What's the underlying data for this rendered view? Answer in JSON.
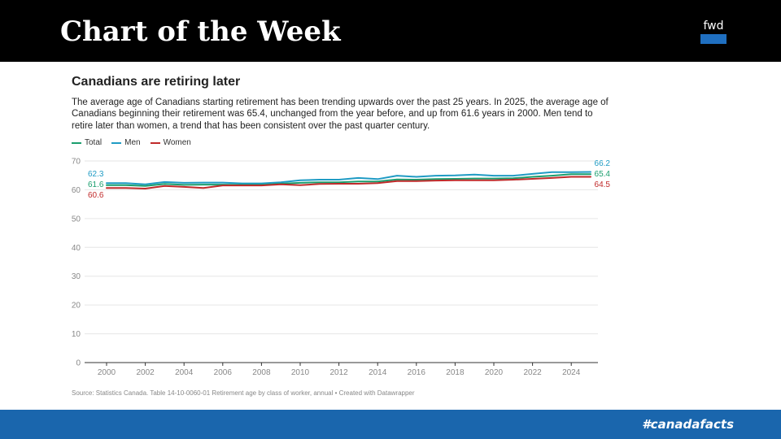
{
  "header": {
    "title": "Chart of the Week",
    "logo_text": "fwd",
    "logo_color": "#1f6fc0"
  },
  "footer": {
    "hashtag": "#canadafacts",
    "color": "#1a66ad"
  },
  "chart_data": {
    "type": "line",
    "title": "Canadians are retiring later",
    "subtitle": "The average age of Canadians starting retirement has been trending upwards over the past 25 years. In 2025, the average age of Canadians beginning their retirement was 65.4, unchanged from the year before, and up from 61.6 years in 2000. Men tend to retire later than women, a trend that has been consistent over the past quarter century.",
    "source": "Source: Statistics Canada. Table 14-10-0060-01 Retirement age by class of worker, annual • Created with Datawrapper",
    "x": [
      2000,
      2001,
      2002,
      2003,
      2004,
      2005,
      2006,
      2007,
      2008,
      2009,
      2010,
      2011,
      2012,
      2013,
      2014,
      2015,
      2016,
      2017,
      2018,
      2019,
      2020,
      2021,
      2022,
      2023,
      2024,
      2025
    ],
    "x_ticks": [
      "2000",
      "2002",
      "2004",
      "2006",
      "2008",
      "2010",
      "2012",
      "2014",
      "2016",
      "2018",
      "2020",
      "2022",
      "2024"
    ],
    "y_ticks": [
      "0",
      "10",
      "20",
      "30",
      "40",
      "50",
      "60",
      "70"
    ],
    "ylim": [
      0,
      70
    ],
    "grid": true,
    "legend_position": "top-left",
    "series": [
      {
        "name": "Total",
        "color": "#1a9e6e",
        "values": [
          61.6,
          61.6,
          61.3,
          62.0,
          61.7,
          61.8,
          61.8,
          61.7,
          61.7,
          62.1,
          62.4,
          62.6,
          62.6,
          62.9,
          62.9,
          63.6,
          63.5,
          63.7,
          63.8,
          63.9,
          63.9,
          64.0,
          64.5,
          64.9,
          65.4,
          65.4
        ],
        "start_label": "61.6",
        "end_label": "65.4"
      },
      {
        "name": "Men",
        "color": "#1f9bc4",
        "values": [
          62.3,
          62.3,
          61.9,
          62.7,
          62.4,
          62.5,
          62.5,
          62.2,
          62.2,
          62.6,
          63.3,
          63.5,
          63.5,
          64.1,
          63.7,
          64.9,
          64.5,
          64.9,
          65.0,
          65.3,
          64.9,
          64.9,
          65.5,
          66.1,
          66.1,
          66.2
        ],
        "start_label": "62.3",
        "end_label": "66.2"
      },
      {
        "name": "Women",
        "color": "#c02a2a",
        "values": [
          60.6,
          60.6,
          60.4,
          61.3,
          61.0,
          60.6,
          61.5,
          61.5,
          61.5,
          61.9,
          61.6,
          62.0,
          62.1,
          62.1,
          62.3,
          63.0,
          63.0,
          63.2,
          63.3,
          63.3,
          63.3,
          63.5,
          63.8,
          64.1,
          64.5,
          64.5
        ],
        "start_label": "60.6",
        "end_label": "64.5"
      }
    ]
  }
}
